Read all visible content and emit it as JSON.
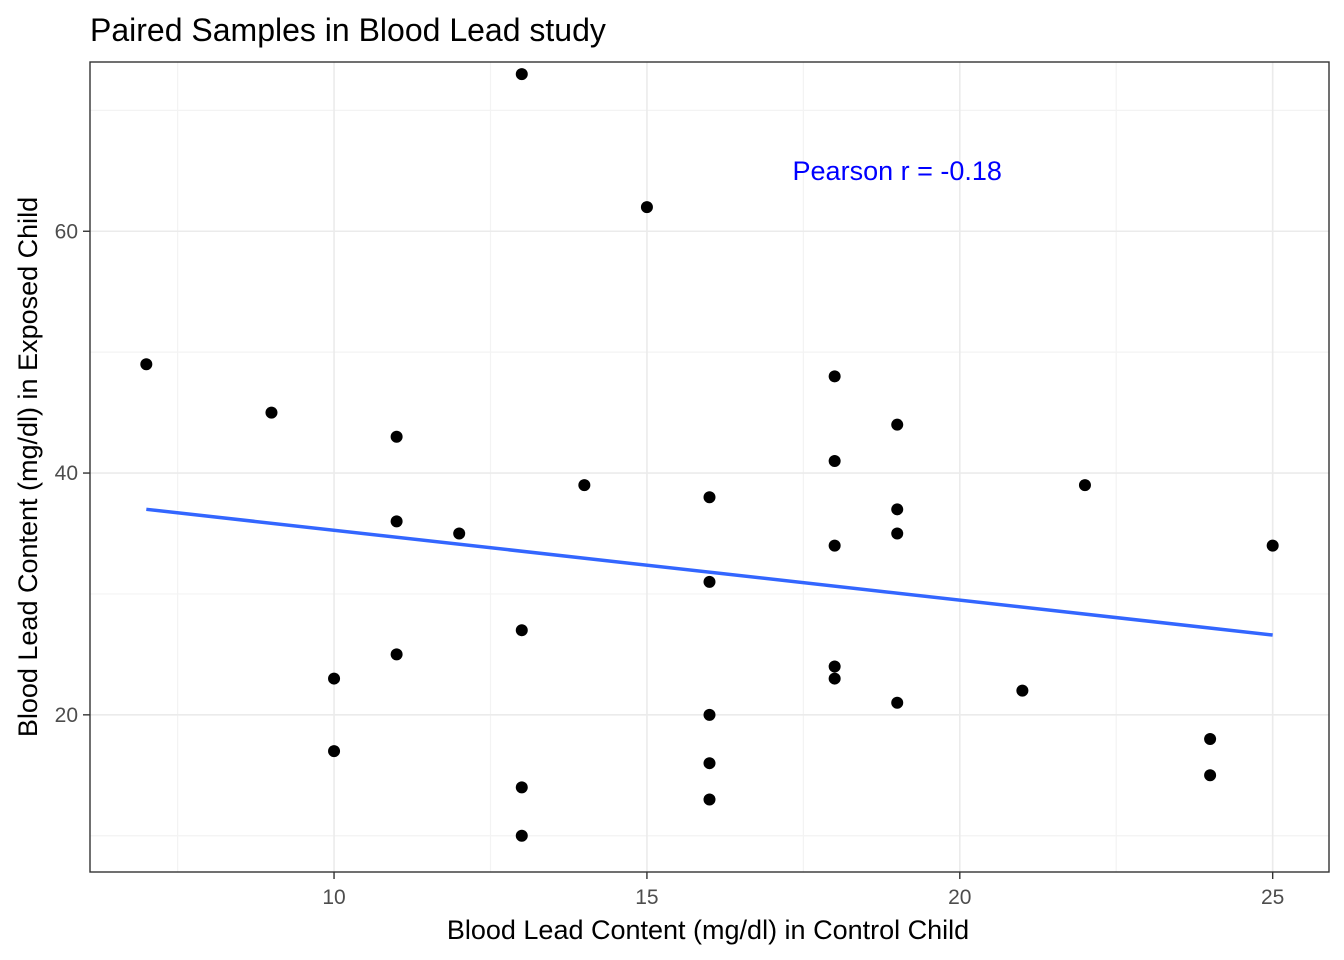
{
  "colors": {
    "points": "#000000",
    "fit_line": "#3366FF",
    "annotation": "#0000FF",
    "grid_major": "#EBEBEB",
    "grid_minor": "#F3F3F3",
    "panel_border": "#333333"
  },
  "chart_data": {
    "type": "scatter",
    "title": "Paired Samples in Blood Lead study",
    "xlabel": "Blood Lead Content (mg/dl) in Control Child",
    "ylabel": "Blood Lead Content (mg/dl) in Exposed Child",
    "xlim": [
      6.1,
      25.9
    ],
    "ylim": [
      7.0,
      74.0
    ],
    "x_ticks": [
      10,
      15,
      20,
      25
    ],
    "x_tick_labels": [
      "10",
      "15",
      "20",
      "25"
    ],
    "y_ticks": [
      20,
      40,
      60
    ],
    "y_tick_labels": [
      "20",
      "40",
      "60"
    ],
    "x_minor": [
      7.5,
      12.5,
      17.5,
      22.5
    ],
    "y_minor": [
      10,
      30,
      50,
      70
    ],
    "grid": true,
    "theme": "bw",
    "points": [
      {
        "x": 7,
        "y": 49
      },
      {
        "x": 9,
        "y": 45
      },
      {
        "x": 10,
        "y": 23
      },
      {
        "x": 10,
        "y": 17
      },
      {
        "x": 11,
        "y": 43
      },
      {
        "x": 11,
        "y": 36
      },
      {
        "x": 11,
        "y": 25
      },
      {
        "x": 12,
        "y": 35
      },
      {
        "x": 13,
        "y": 73
      },
      {
        "x": 13,
        "y": 27
      },
      {
        "x": 13,
        "y": 14
      },
      {
        "x": 13,
        "y": 10
      },
      {
        "x": 14,
        "y": 39
      },
      {
        "x": 15,
        "y": 62
      },
      {
        "x": 16,
        "y": 38
      },
      {
        "x": 16,
        "y": 31
      },
      {
        "x": 16,
        "y": 20
      },
      {
        "x": 16,
        "y": 16
      },
      {
        "x": 16,
        "y": 13
      },
      {
        "x": 18,
        "y": 48
      },
      {
        "x": 18,
        "y": 41
      },
      {
        "x": 18,
        "y": 34
      },
      {
        "x": 18,
        "y": 24
      },
      {
        "x": 18,
        "y": 23
      },
      {
        "x": 19,
        "y": 44
      },
      {
        "x": 19,
        "y": 37
      },
      {
        "x": 19,
        "y": 35
      },
      {
        "x": 19,
        "y": 21
      },
      {
        "x": 21,
        "y": 22
      },
      {
        "x": 22,
        "y": 39
      },
      {
        "x": 24,
        "y": 18
      },
      {
        "x": 24,
        "y": 15
      },
      {
        "x": 25,
        "y": 34
      }
    ],
    "fit_line": {
      "method": "lm",
      "x": [
        7,
        25
      ],
      "y": [
        37.0,
        26.6
      ]
    },
    "annotation": {
      "text": "Pearson r =  -0.18",
      "x": 19.0,
      "y": 65.0
    }
  }
}
